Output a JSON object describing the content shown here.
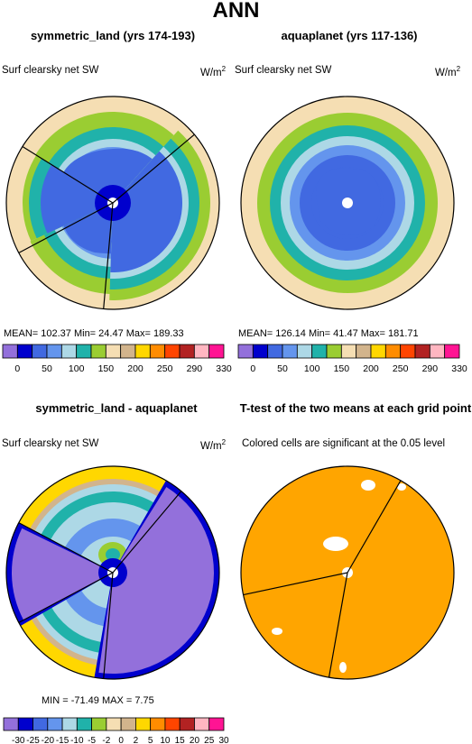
{
  "title": "ANN",
  "panels": [
    {
      "title": "symmetric_land (yrs 174-193)",
      "variable": "Surf clearsky net SW",
      "units": "W/m",
      "units_sup": "2"
    },
    {
      "title": "aquaplanet (yrs 117-136)",
      "variable": "Surf clearsky net SW",
      "units": "W/m",
      "units_sup": "2"
    },
    {
      "title": "symmetric_land - aquaplanet",
      "variable": "Surf clearsky net SW",
      "units": "W/m",
      "units_sup": "2"
    },
    {
      "title": "T-test of the two means at each grid point",
      "note": "Colored cells are significant at the 0.05 level"
    }
  ],
  "stats": {
    "land": "MEAN= 102.37   Min=   24.47   Max= 189.33",
    "aqua": "MEAN= 126.14   Min=   41.47   Max= 181.71",
    "diff": "MIN = -71.49  MAX =    7.75"
  },
  "colorbar_abs": {
    "colors": [
      "#9370db",
      "#0000cd",
      "#4169e1",
      "#6495ed",
      "#add8e6",
      "#20b2aa",
      "#9acd32",
      "#f5deb3",
      "#d2b48c",
      "#ffd700",
      "#ff8c00",
      "#ff4500",
      "#b22222",
      "#ffb6c1",
      "#ff1493"
    ],
    "labels": [
      "0",
      "50",
      "100",
      "150",
      "200",
      "250",
      "290",
      "330"
    ]
  },
  "colorbar_diff": {
    "colors": [
      "#9370db",
      "#0000cd",
      "#4169e1",
      "#6495ed",
      "#add8e6",
      "#20b2aa",
      "#9acd32",
      "#f5deb3",
      "#d2b48c",
      "#ffd700",
      "#ff8c00",
      "#ff4500",
      "#b22222",
      "#ffb6c1",
      "#ff1493"
    ],
    "labels": [
      "-30",
      "-25",
      "-20",
      "-15",
      "-10",
      "-5",
      "-2",
      "0",
      "2",
      "5",
      "10",
      "15",
      "20",
      "25",
      "30"
    ]
  },
  "colors": {
    "significant": "#ffa500",
    "outline": "#000000"
  },
  "chart_data": [
    {
      "type": "heatmap",
      "title": "symmetric_land (yrs 174-193)",
      "subtitle": "Surf clearsky net SW",
      "units": "W/m2",
      "projection": "polar",
      "levels": [
        0,
        25,
        50,
        75,
        100,
        125,
        150,
        175,
        200,
        225,
        250,
        270,
        290,
        310,
        330
      ],
      "zones_pole_to_edge": [
        {
          "range": "<50"
        },
        {
          "range": "75-100"
        },
        {
          "range": "100-125"
        },
        {
          "range": "125-150"
        },
        {
          "range": "150-175"
        },
        {
          "range": "175-200"
        },
        {
          "range": "200-225"
        }
      ],
      "mean": 102.37,
      "min": 24.47,
      "max": 189.33
    },
    {
      "type": "heatmap",
      "title": "aquaplanet (yrs 117-136)",
      "subtitle": "Surf clearsky net SW",
      "units": "W/m2",
      "projection": "polar",
      "levels": [
        0,
        25,
        50,
        75,
        100,
        125,
        150,
        175,
        200,
        225,
        250,
        270,
        290,
        310,
        330
      ],
      "mean": 126.14,
      "min": 41.47,
      "max": 181.71
    },
    {
      "type": "heatmap",
      "title": "symmetric_land - aquaplanet",
      "subtitle": "Surf clearsky net SW",
      "units": "W/m2",
      "projection": "polar",
      "levels": [
        -30,
        -25,
        -20,
        -15,
        -10,
        -5,
        -2,
        0,
        2,
        5,
        10,
        15,
        20,
        25,
        30
      ],
      "min": -71.49,
      "max": 7.75
    },
    {
      "type": "heatmap",
      "title": "T-test of the two means at each grid point",
      "subtitle": "Colored cells are significant at the 0.05 level",
      "projection": "polar",
      "significance_level": 0.05
    }
  ]
}
